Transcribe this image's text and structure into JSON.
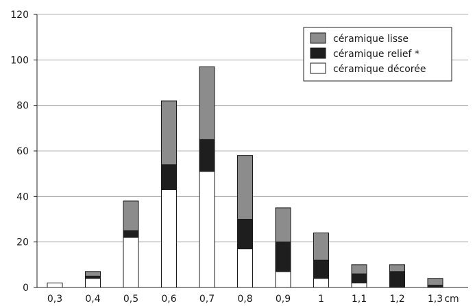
{
  "chart_data": {
    "type": "bar",
    "stacked": true,
    "categories": [
      "0,3",
      "0,4",
      "0,5",
      "0,6",
      "0,7",
      "0,8",
      "0,9",
      "1",
      "1,1",
      "1,2",
      "1,3"
    ],
    "x_unit": "cm",
    "series": [
      {
        "name": "céramique décorée",
        "color": "#ffffff",
        "values": [
          2,
          4,
          22,
          43,
          51,
          17,
          7,
          4,
          2,
          0,
          0
        ]
      },
      {
        "name": "céramique relief *",
        "color": "#1e1e1e",
        "values": [
          0,
          1,
          3,
          11,
          14,
          13,
          13,
          8,
          4,
          7,
          1
        ]
      },
      {
        "name": "céramique lisse",
        "color": "#8c8c8c",
        "values": [
          0,
          2,
          13,
          28,
          32,
          28,
          15,
          12,
          4,
          3,
          3
        ]
      }
    ],
    "legend_order": [
      "céramique lisse",
      "céramique relief *",
      "céramique décorée"
    ],
    "ylim": [
      0,
      120
    ],
    "yticks": [
      0,
      20,
      40,
      60,
      80,
      100,
      120
    ],
    "grid": "horizontal",
    "legend_position": "top-right",
    "title": "",
    "xlabel": "",
    "ylabel": ""
  }
}
